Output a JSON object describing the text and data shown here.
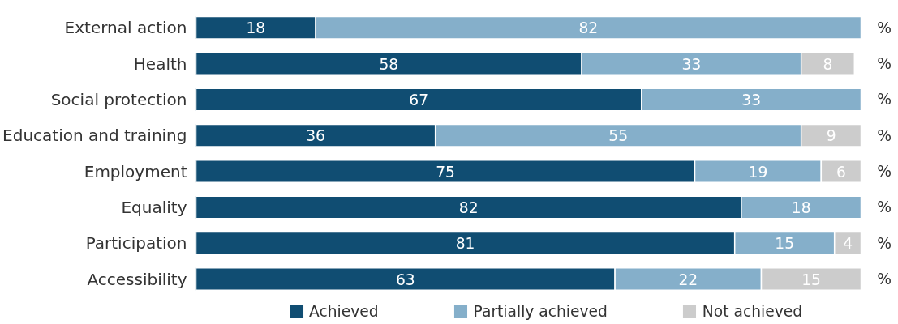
{
  "chart_data": {
    "type": "bar",
    "orientation": "horizontal",
    "stacked": true,
    "data_labels": true,
    "legend": "bottom",
    "grid": false,
    "categories": [
      "External action",
      "Health",
      "Social protection",
      "Education and training",
      "Employment",
      "Equality",
      "Participation",
      "Accessibility"
    ],
    "series": [
      {
        "name": "Achieved",
        "color": "#104d72",
        "values": [
          18,
          58,
          67,
          36,
          75,
          82,
          81,
          63
        ]
      },
      {
        "name": "Partially achieved",
        "color": "#85afca",
        "values": [
          82,
          33,
          33,
          55,
          19,
          18,
          15,
          22
        ]
      },
      {
        "name": "Not achieved",
        "color": "#cccccc",
        "values": [
          null,
          8,
          null,
          9,
          6,
          null,
          4,
          15
        ]
      }
    ],
    "annotations": [
      "%"
    ]
  }
}
